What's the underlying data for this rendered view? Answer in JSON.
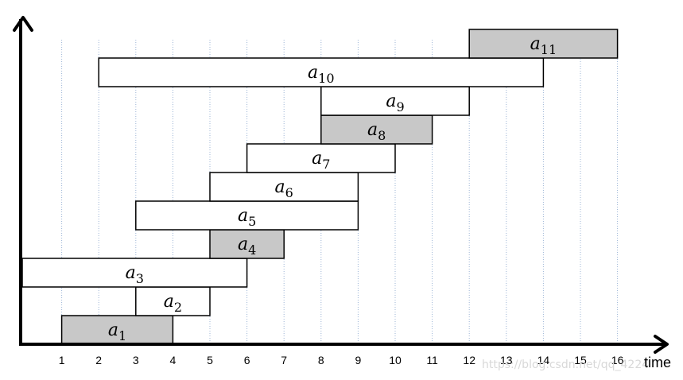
{
  "colors": {
    "selected_fill": "#c8c8c8",
    "unselected_fill": "#ffffff",
    "gridline": "#9db5d6",
    "axis": "#000000"
  },
  "axis": {
    "x_label": "time",
    "ticks": [
      1,
      2,
      3,
      4,
      5,
      6,
      7,
      8,
      9,
      10,
      11,
      12,
      13,
      14,
      15,
      16
    ]
  },
  "activities": [
    {
      "name": "a",
      "sub": "1",
      "start": 1,
      "finish": 4,
      "selected": true
    },
    {
      "name": "a",
      "sub": "2",
      "start": 3,
      "finish": 5,
      "selected": false
    },
    {
      "name": "a",
      "sub": "3",
      "start": 0,
      "finish": 6,
      "selected": false
    },
    {
      "name": "a",
      "sub": "4",
      "start": 5,
      "finish": 7,
      "selected": true
    },
    {
      "name": "a",
      "sub": "5",
      "start": 3,
      "finish": 9,
      "selected": false
    },
    {
      "name": "a",
      "sub": "6",
      "start": 5,
      "finish": 9,
      "selected": false
    },
    {
      "name": "a",
      "sub": "7",
      "start": 6,
      "finish": 10,
      "selected": false
    },
    {
      "name": "a",
      "sub": "8",
      "start": 8,
      "finish": 11,
      "selected": true
    },
    {
      "name": "a",
      "sub": "9",
      "start": 8,
      "finish": 12,
      "selected": false
    },
    {
      "name": "a",
      "sub": "10",
      "start": 2,
      "finish": 14,
      "selected": false
    },
    {
      "name": "a",
      "sub": "11",
      "start": 12,
      "finish": 16,
      "selected": true
    }
  ],
  "watermark": "https://blog.csdn.net/qq_4224"
}
